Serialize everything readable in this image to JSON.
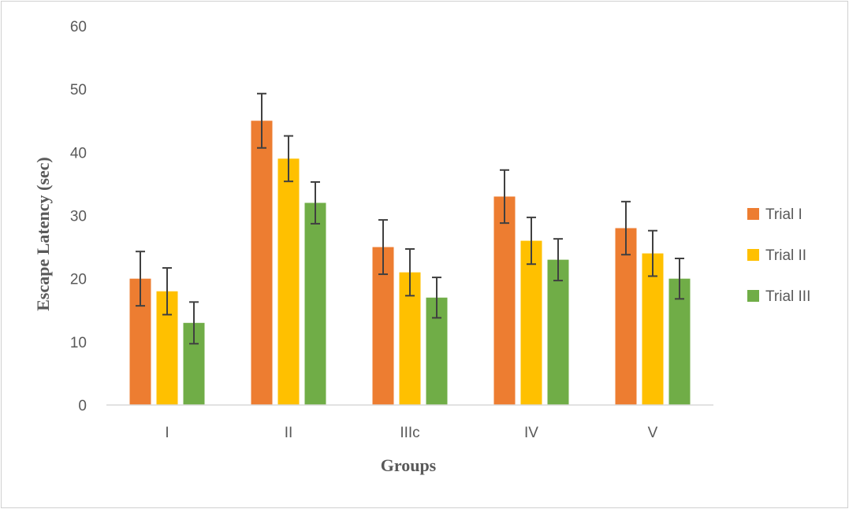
{
  "chart_data": {
    "type": "bar",
    "title": "",
    "xlabel": "Groups",
    "ylabel": "Escape Latency (sec)",
    "ylim": [
      0,
      60
    ],
    "yticks": [
      0,
      10,
      20,
      30,
      40,
      50,
      60
    ],
    "categories": [
      "I",
      "II",
      "IIIc",
      "IV",
      "V"
    ],
    "series": [
      {
        "name": "Trial I",
        "color": "#ED7D31",
        "values": [
          20,
          45,
          25,
          33,
          28
        ],
        "error": [
          4.3,
          4.3,
          4.3,
          4.2,
          4.2
        ]
      },
      {
        "name": "Trial II",
        "color": "#FFC000",
        "values": [
          18,
          39,
          21,
          26,
          24
        ],
        "error": [
          3.7,
          3.6,
          3.7,
          3.7,
          3.6
        ]
      },
      {
        "name": "Trial III",
        "color": "#70AD47",
        "values": [
          13,
          32,
          17,
          23,
          20
        ],
        "error": [
          3.3,
          3.3,
          3.2,
          3.3,
          3.2
        ]
      }
    ],
    "legend_position": "right",
    "grid": false
  }
}
